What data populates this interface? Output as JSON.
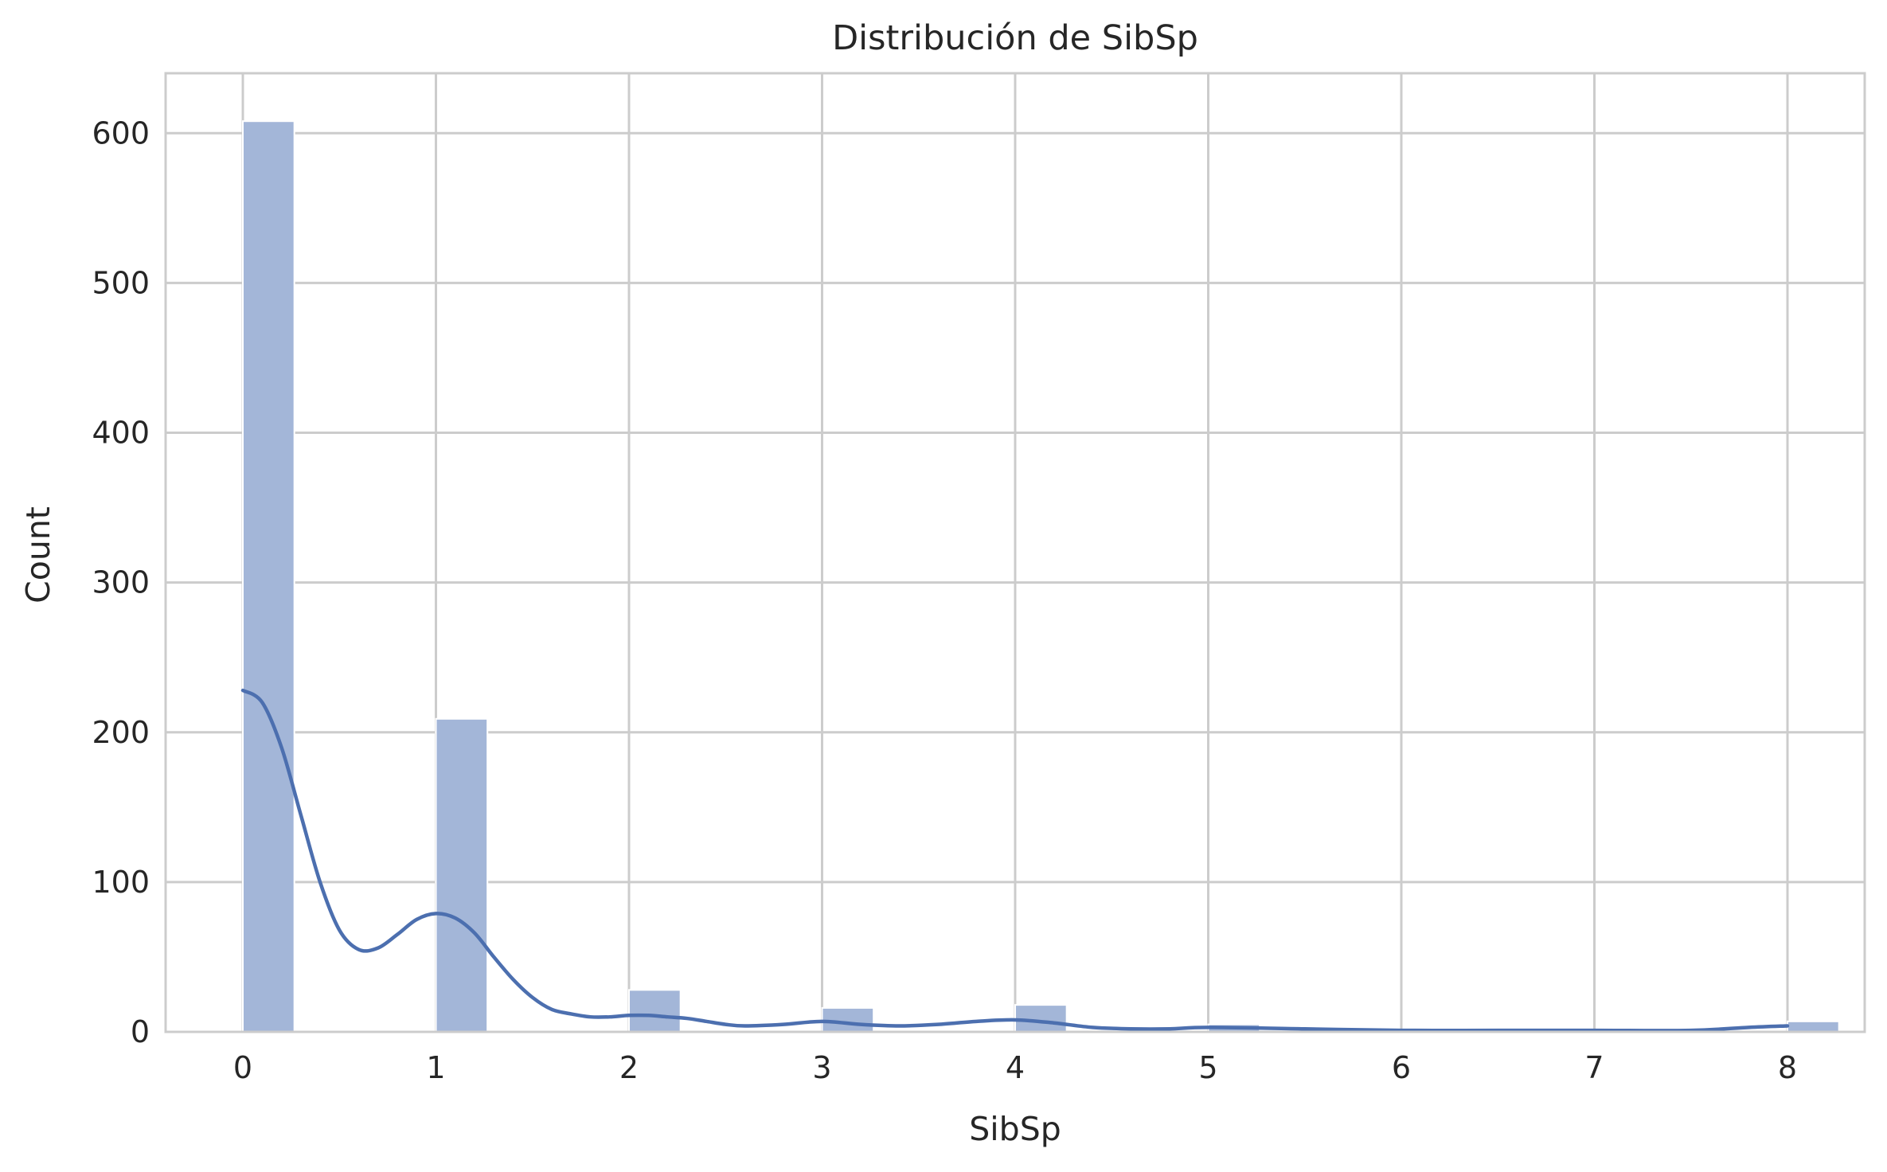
{
  "chart_data": {
    "type": "bar",
    "title": "Distribución de SibSp",
    "xlabel": "SibSp",
    "ylabel": "Count",
    "xlim": [
      -0.4,
      8.4
    ],
    "ylim": [
      0,
      640
    ],
    "xticks": [
      0,
      1,
      2,
      3,
      4,
      5,
      6,
      7,
      8
    ],
    "yticks": [
      0,
      100,
      200,
      300,
      400,
      500,
      600
    ],
    "bin_width": 0.2667,
    "bins": [
      {
        "x": 0,
        "count": 608
      },
      {
        "x": 1,
        "count": 209
      },
      {
        "x": 2,
        "count": 28
      },
      {
        "x": 3,
        "count": 16
      },
      {
        "x": 4,
        "count": 18
      },
      {
        "x": 5,
        "count": 5
      },
      {
        "x": 8,
        "count": 7
      }
    ],
    "kde": {
      "x": [
        0,
        0.1,
        0.2,
        0.3,
        0.4,
        0.5,
        0.6,
        0.7,
        0.8,
        0.9,
        1.0,
        1.1,
        1.2,
        1.3,
        1.4,
        1.5,
        1.6,
        1.7,
        1.8,
        1.9,
        2.0,
        2.1,
        2.2,
        2.3,
        2.4,
        2.5,
        2.6,
        2.8,
        3.0,
        3.2,
        3.4,
        3.6,
        3.8,
        4.0,
        4.2,
        4.4,
        4.6,
        4.8,
        5.0,
        5.5,
        6.0,
        6.5,
        7.0,
        7.5,
        7.8,
        8.0
      ],
      "y": [
        228,
        220,
        190,
        145,
        100,
        68,
        55,
        56,
        65,
        75,
        79,
        76,
        66,
        50,
        35,
        23,
        15,
        12,
        10,
        10,
        11,
        11,
        10,
        9,
        7,
        5,
        4,
        5,
        7,
        5,
        4,
        5,
        7,
        8,
        6,
        3,
        2,
        2,
        3,
        2,
        1,
        1,
        1,
        1,
        3,
        4
      ]
    },
    "colors": {
      "bar_fill": "#a3b6d8",
      "bar_stroke": "#ffffff",
      "kde_line": "#4c6faf",
      "grid": "#cccccc",
      "spine": "#cccccc",
      "text": "#262626"
    },
    "grid": true
  }
}
